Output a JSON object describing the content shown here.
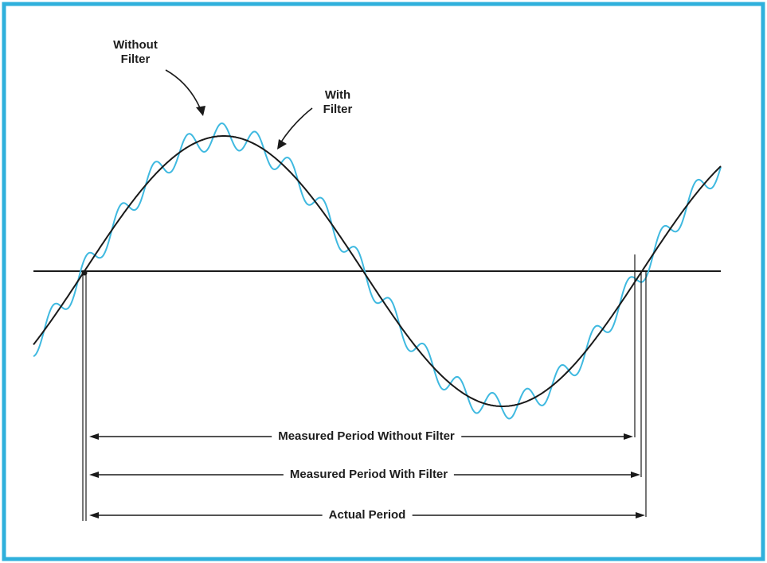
{
  "labels": {
    "without_filter_line1": "Without",
    "without_filter_line2": "Filter",
    "with_filter_line1": "With",
    "with_filter_line2": "Filter",
    "measured_without": "Measured Period Without Filter",
    "measured_with": "Measured Period With Filter",
    "actual": "Actual Period"
  },
  "colors": {
    "frame": "#2fb0dc",
    "filtered_wave": "#1a1a1a",
    "unfiltered_wave": "#3fb9e0",
    "ink": "#1d1d1d"
  }
}
